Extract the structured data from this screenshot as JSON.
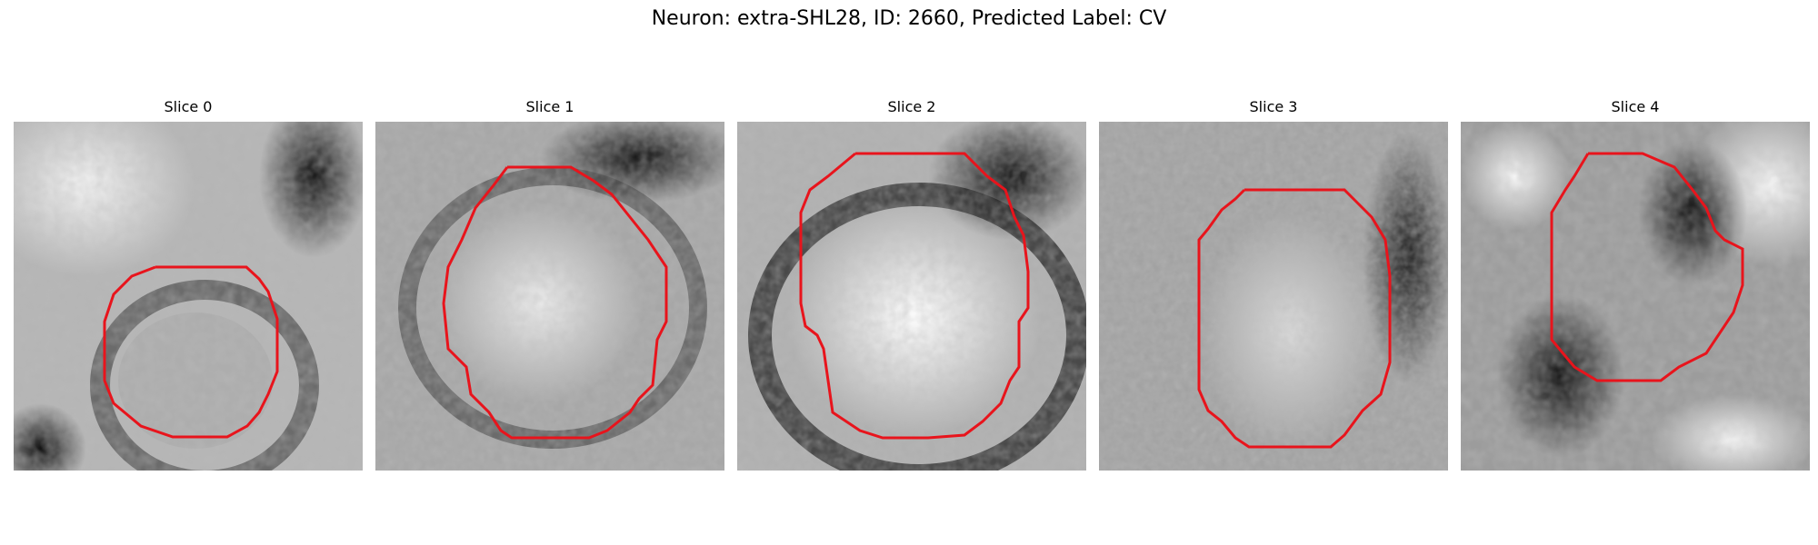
{
  "figure": {
    "title": "Neuron: extra-SHL28, ID: 2660, Predicted Label: CV"
  },
  "panels": [
    {
      "title": "Slice 0"
    },
    {
      "title": "Slice 1"
    },
    {
      "title": "Slice 2"
    },
    {
      "title": "Slice 3"
    },
    {
      "title": "Slice 4"
    }
  ],
  "colors": {
    "contour": "#e8141c",
    "background": "#ffffff"
  }
}
